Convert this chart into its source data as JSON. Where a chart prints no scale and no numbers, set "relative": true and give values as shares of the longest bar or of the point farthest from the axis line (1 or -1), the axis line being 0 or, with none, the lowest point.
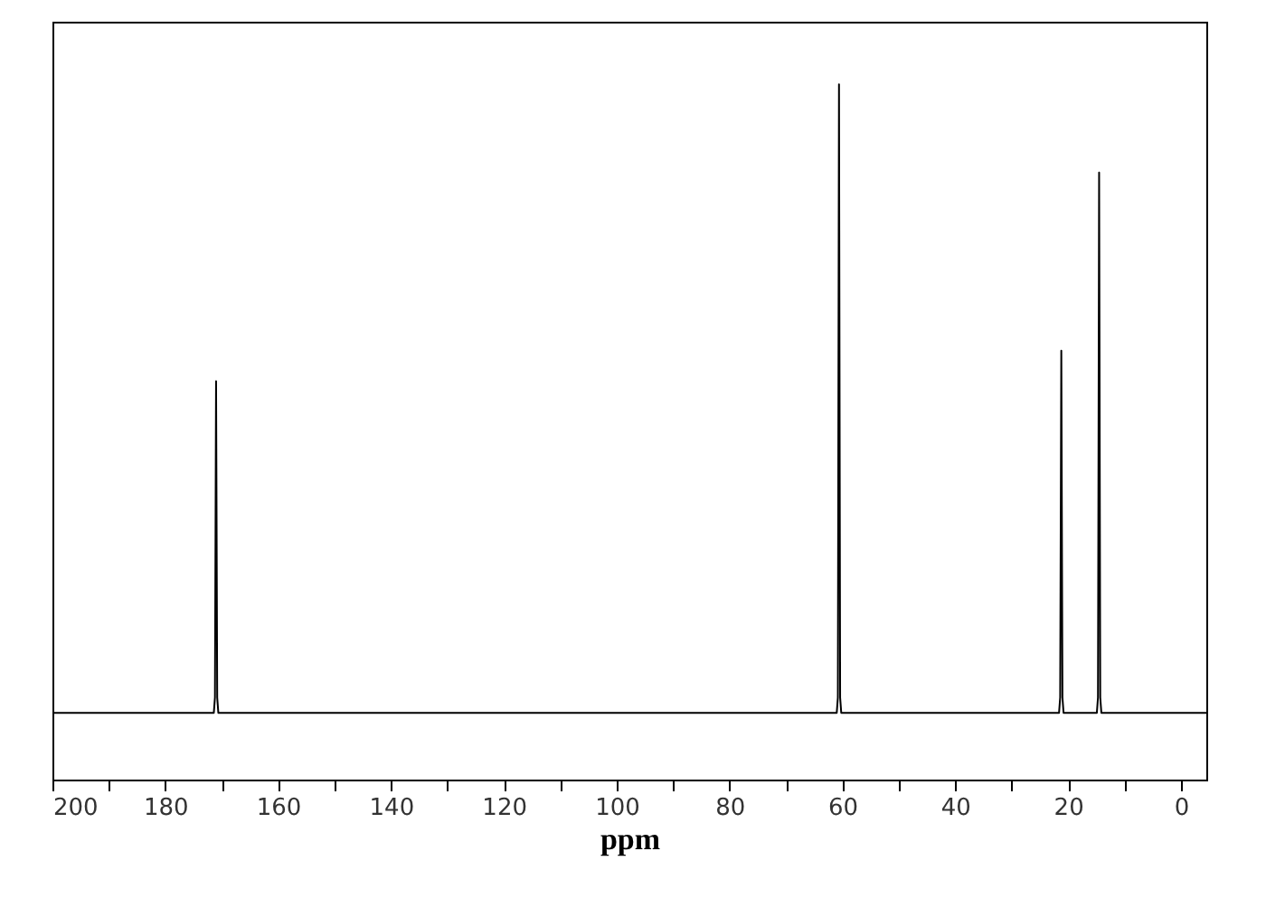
{
  "chart_data": {
    "type": "line",
    "xlabel": "ppm",
    "relative": true,
    "grid": false,
    "tick_labels": "x",
    "marker": "none",
    "line_style": "solid",
    "xlim": [
      200,
      -4.5
    ],
    "xticks": [
      200,
      {
        "value": 190,
        "label": null
      },
      180,
      {
        "value": 170,
        "label": null
      },
      160,
      {
        "value": 150,
        "label": null
      },
      140,
      {
        "value": 130,
        "label": null
      },
      120,
      {
        "value": 110,
        "label": null
      },
      100,
      {
        "value": 90,
        "label": null
      },
      80,
      {
        "value": 70,
        "label": null
      },
      60,
      {
        "value": 50,
        "label": null
      },
      40,
      {
        "value": 30,
        "label": null
      },
      20,
      {
        "value": 10,
        "label": null
      },
      0
    ],
    "series": [
      {
        "color": "#000000",
        "x": [
          200,
          171.4,
          171.2,
          171.0,
          170.8,
          170.6,
          61.0,
          60.8,
          60.6,
          60.4,
          60.2,
          21.6,
          21.4,
          21.2,
          21.0,
          20.8,
          14.9,
          14.7,
          14.5,
          14.3,
          14.1,
          -4.5
        ],
        "values": [
          0.096,
          0.096,
          0.118,
          0.573,
          0.118,
          0.096,
          0.096,
          0.118,
          1.0,
          0.118,
          0.096,
          0.096,
          0.118,
          0.617,
          0.118,
          0.096,
          0.096,
          0.118,
          0.873,
          0.118,
          0.096,
          0.096
        ]
      }
    ]
  }
}
